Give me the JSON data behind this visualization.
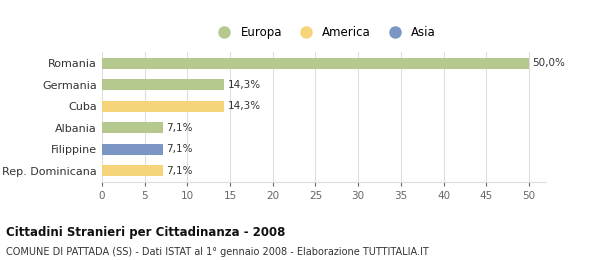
{
  "categories": [
    "Romania",
    "Germania",
    "Cuba",
    "Albania",
    "Filippine",
    "Rep. Dominicana"
  ],
  "values": [
    50.0,
    14.3,
    14.3,
    7.1,
    7.1,
    7.1
  ],
  "labels": [
    "50,0%",
    "14,3%",
    "14,3%",
    "7,1%",
    "7,1%",
    "7,1%"
  ],
  "colors": [
    "#b5c98e",
    "#b5c98e",
    "#f5d47a",
    "#b5c98e",
    "#7b96c2",
    "#f5d47a"
  ],
  "legend": [
    {
      "label": "Europa",
      "color": "#b5c98e"
    },
    {
      "label": "America",
      "color": "#f5d47a"
    },
    {
      "label": "Asia",
      "color": "#7b96c2"
    }
  ],
  "xlim": [
    0,
    52
  ],
  "xticks": [
    0,
    5,
    10,
    15,
    20,
    25,
    30,
    35,
    40,
    45,
    50
  ],
  "title": "Cittadini Stranieri per Cittadinanza - 2008",
  "subtitle": "COMUNE DI PATTADA (SS) - Dati ISTAT al 1° gennaio 2008 - Elaborazione TUTTITALIA.IT",
  "background_color": "#ffffff",
  "grid_color": "#dddddd",
  "bar_height": 0.5
}
